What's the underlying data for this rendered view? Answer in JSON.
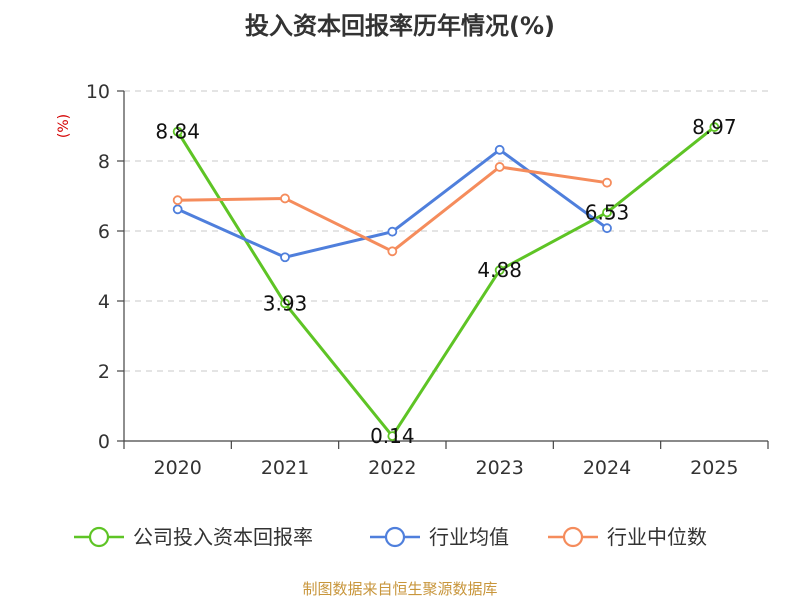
{
  "chart_data": {
    "type": "line",
    "title": "投入资本回报率历年情况(%)",
    "ylabel": "(%)",
    "xlabel": "",
    "categories": [
      "2020",
      "2021",
      "2022",
      "2023",
      "2024",
      "2025"
    ],
    "ylim": [
      0,
      10
    ],
    "yticks": [
      0,
      2,
      4,
      6,
      8,
      10
    ],
    "grid": true,
    "legend_position": "bottom",
    "series": [
      {
        "name": "公司投入资本回报率",
        "color": "#5ec425",
        "values": [
          8.84,
          3.93,
          0.14,
          4.88,
          6.53,
          8.97
        ],
        "labels": [
          "8.84",
          "3.93",
          "0.14",
          "4.88",
          "6.53",
          "8.97"
        ],
        "show_labels": true
      },
      {
        "name": "行业均值",
        "color": "#4f7fdc",
        "values": [
          6.62,
          5.25,
          5.98,
          8.32,
          6.08,
          null
        ],
        "show_labels": false
      },
      {
        "name": "行业中位数",
        "color": "#f58c5c",
        "values": [
          6.88,
          6.93,
          5.42,
          7.83,
          7.38,
          null
        ],
        "show_labels": false
      }
    ]
  },
  "source_text": "制图数据来自恒生聚源数据库"
}
